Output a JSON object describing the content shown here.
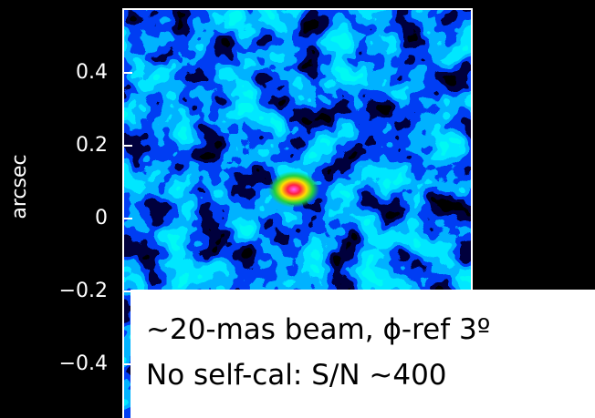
{
  "chart_data": {
    "type": "image",
    "ylabel": "arcsec",
    "ylim": [
      -0.5475,
      0.575
    ],
    "yticks": [
      0.4,
      0.2,
      0,
      {
        "value": -0.2,
        "label": "−0.2"
      },
      {
        "value": -0.4,
        "label": "−0.4"
      }
    ],
    "annotations": [
      "~20-mas beam, ϕ-ref 3º",
      "No self-cal: S/N ~400"
    ]
  }
}
